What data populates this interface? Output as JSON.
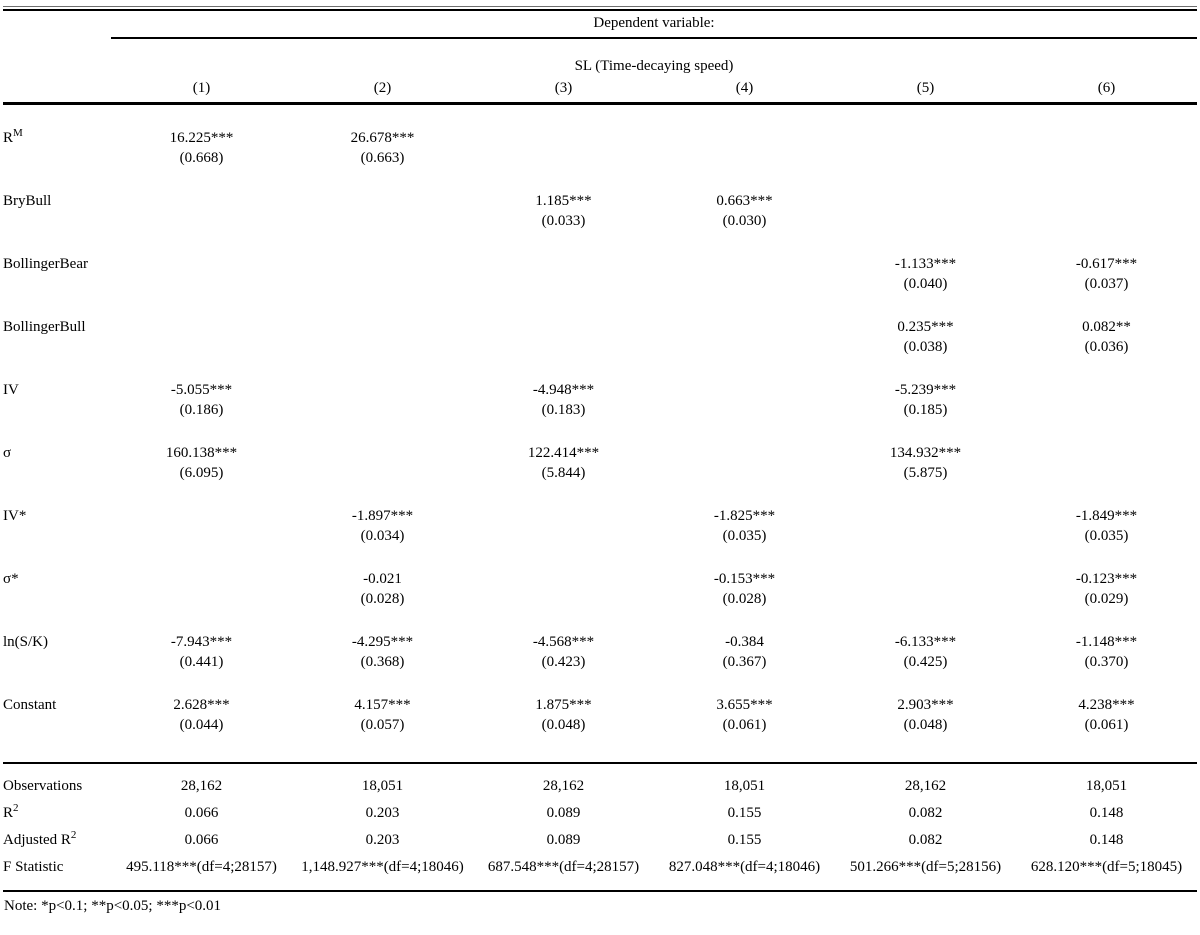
{
  "header": {
    "dependent_variable_label": "Dependent variable:",
    "dv_name": "SL (Time-decaying speed)",
    "column_numbers": [
      "(1)",
      "(2)",
      "(3)",
      "(4)",
      "(5)",
      "(6)"
    ]
  },
  "coefficients": [
    {
      "label": {
        "text": "R",
        "sup": "M"
      },
      "cells": [
        {
          "coef": "16.225***",
          "se": "(0.668)"
        },
        {
          "coef": "26.678***",
          "se": "(0.663)"
        },
        null,
        null,
        null,
        null
      ]
    },
    {
      "label": {
        "text": "BryBull",
        "sup": ""
      },
      "cells": [
        null,
        null,
        {
          "coef": "1.185***",
          "se": "(0.033)"
        },
        {
          "coef": "0.663***",
          "se": "(0.030)"
        },
        null,
        null
      ]
    },
    {
      "label": {
        "text": "BollingerBear",
        "sup": ""
      },
      "cells": [
        null,
        null,
        null,
        null,
        {
          "coef": "-1.133***",
          "se": "(0.040)"
        },
        {
          "coef": "-0.617***",
          "se": "(0.037)"
        }
      ]
    },
    {
      "label": {
        "text": "BollingerBull",
        "sup": ""
      },
      "cells": [
        null,
        null,
        null,
        null,
        {
          "coef": "0.235***",
          "se": "(0.038)"
        },
        {
          "coef": "0.082**",
          "se": "(0.036)"
        }
      ]
    },
    {
      "label": {
        "text": "IV",
        "sup": ""
      },
      "cells": [
        {
          "coef": "-5.055***",
          "se": "(0.186)"
        },
        null,
        {
          "coef": "-4.948***",
          "se": "(0.183)"
        },
        null,
        {
          "coef": "-5.239***",
          "se": "(0.185)"
        },
        null
      ]
    },
    {
      "label": {
        "text": "σ",
        "sup": ""
      },
      "cells": [
        {
          "coef": "160.138***",
          "se": "(6.095)"
        },
        null,
        {
          "coef": "122.414***",
          "se": "(5.844)"
        },
        null,
        {
          "coef": "134.932***",
          "se": "(5.875)"
        },
        null
      ]
    },
    {
      "label": {
        "text": "IV*",
        "sup": ""
      },
      "cells": [
        null,
        {
          "coef": "-1.897***",
          "se": "(0.034)"
        },
        null,
        {
          "coef": "-1.825***",
          "se": "(0.035)"
        },
        null,
        {
          "coef": "-1.849***",
          "se": "(0.035)"
        }
      ]
    },
    {
      "label": {
        "text": "σ*",
        "sup": ""
      },
      "cells": [
        null,
        {
          "coef": "-0.021",
          "se": "(0.028)"
        },
        null,
        {
          "coef": "-0.153***",
          "se": "(0.028)"
        },
        null,
        {
          "coef": "-0.123***",
          "se": "(0.029)"
        }
      ]
    },
    {
      "label": {
        "text": "ln(S/K)",
        "sup": ""
      },
      "cells": [
        {
          "coef": "-7.943***",
          "se": "(0.441)"
        },
        {
          "coef": "-4.295***",
          "se": "(0.368)"
        },
        {
          "coef": "-4.568***",
          "se": "(0.423)"
        },
        {
          "coef": "-0.384",
          "se": "(0.367)"
        },
        {
          "coef": "-6.133***",
          "se": "(0.425)"
        },
        {
          "coef": "-1.148***",
          "se": "(0.370)"
        }
      ]
    },
    {
      "label": {
        "text": "Constant",
        "sup": ""
      },
      "cells": [
        {
          "coef": "2.628***",
          "se": "(0.044)"
        },
        {
          "coef": "4.157***",
          "se": "(0.057)"
        },
        {
          "coef": "1.875***",
          "se": "(0.048)"
        },
        {
          "coef": "3.655***",
          "se": "(0.061)"
        },
        {
          "coef": "2.903***",
          "se": "(0.048)"
        },
        {
          "coef": "4.238***",
          "se": "(0.061)"
        }
      ]
    }
  ],
  "stats": [
    {
      "label": {
        "text": "Observations",
        "sup": ""
      },
      "values": [
        "28,162",
        "18,051",
        "28,162",
        "18,051",
        "28,162",
        "18,051"
      ]
    },
    {
      "label": {
        "text": "R",
        "sup": "2"
      },
      "values": [
        "0.066",
        "0.203",
        "0.089",
        "0.155",
        "0.082",
        "0.148"
      ]
    },
    {
      "label": {
        "text": "Adjusted R",
        "sup": "2"
      },
      "values": [
        "0.066",
        "0.203",
        "0.089",
        "0.155",
        "0.082",
        "0.148"
      ]
    },
    {
      "label": {
        "text": "F Statistic",
        "sup": ""
      },
      "values": [
        "495.118***(df=4;28157)",
        "1,148.927***(df=4;18046)",
        "687.548***(df=4;28157)",
        "827.048***(df=4;18046)",
        "501.266***(df=5;28156)",
        "628.120***(df=5;18045)"
      ]
    }
  ],
  "note": "Note: *p<0.1; **p<0.05; ***p<0.01"
}
